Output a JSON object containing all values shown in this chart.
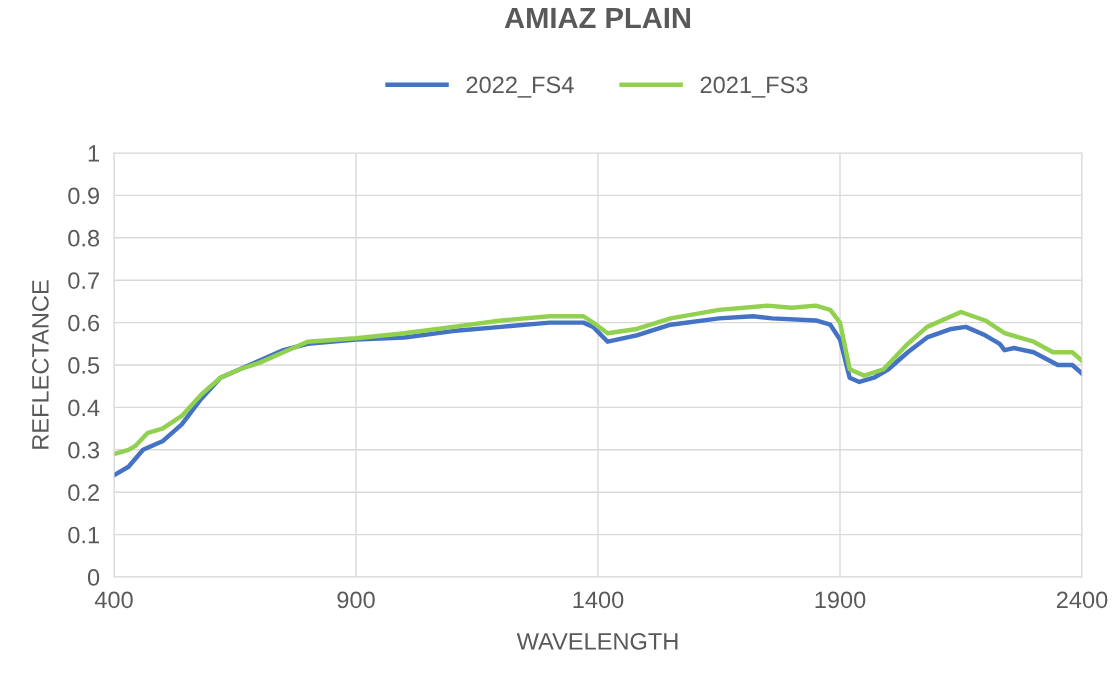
{
  "chart_data": {
    "type": "line",
    "title": "AMIAZ PLAIN",
    "xlabel": "WAVELENGTH",
    "ylabel": "REFLECTANCE",
    "xlim": [
      400,
      2400
    ],
    "xticks": [
      400,
      900,
      1400,
      1900,
      2400
    ],
    "ylim": [
      0,
      1
    ],
    "yticks": [
      0,
      0.1,
      0.2,
      0.3,
      0.4,
      0.5,
      0.6,
      0.7,
      0.8,
      0.9,
      1
    ],
    "grid": true,
    "legend": "top",
    "marker": "none",
    "line_style": "solid",
    "series": [
      {
        "name": "2022_FS4",
        "color": "#4472c4",
        "x": [
          400,
          430,
          460,
          500,
          540,
          580,
          620,
          660,
          700,
          750,
          800,
          900,
          1000,
          1100,
          1200,
          1300,
          1370,
          1390,
          1420,
          1480,
          1550,
          1650,
          1720,
          1760,
          1850,
          1880,
          1900,
          1920,
          1940,
          1970,
          2000,
          2040,
          2080,
          2130,
          2160,
          2200,
          2230,
          2240,
          2260,
          2300,
          2350,
          2380,
          2400
        ],
        "values": [
          0.24,
          0.26,
          0.3,
          0.32,
          0.36,
          0.42,
          0.47,
          0.49,
          0.51,
          0.535,
          0.55,
          0.56,
          0.565,
          0.58,
          0.59,
          0.6,
          0.6,
          0.59,
          0.555,
          0.57,
          0.595,
          0.61,
          0.615,
          0.61,
          0.605,
          0.595,
          0.56,
          0.47,
          0.46,
          0.47,
          0.49,
          0.53,
          0.565,
          0.585,
          0.59,
          0.57,
          0.55,
          0.535,
          0.54,
          0.53,
          0.5,
          0.5,
          0.48
        ]
      },
      {
        "name": "2021_FS3",
        "color": "#92d050",
        "x": [
          400,
          430,
          445,
          470,
          500,
          540,
          580,
          620,
          660,
          700,
          750,
          800,
          900,
          1000,
          1100,
          1200,
          1300,
          1370,
          1390,
          1420,
          1480,
          1550,
          1650,
          1750,
          1800,
          1850,
          1880,
          1900,
          1920,
          1950,
          1990,
          2040,
          2080,
          2150,
          2200,
          2240,
          2300,
          2340,
          2380,
          2400
        ],
        "values": [
          0.29,
          0.3,
          0.31,
          0.34,
          0.35,
          0.38,
          0.43,
          0.47,
          0.49,
          0.505,
          0.53,
          0.555,
          0.563,
          0.575,
          0.59,
          0.605,
          0.615,
          0.615,
          0.6,
          0.575,
          0.585,
          0.61,
          0.63,
          0.64,
          0.635,
          0.64,
          0.63,
          0.6,
          0.49,
          0.475,
          0.49,
          0.55,
          0.59,
          0.625,
          0.605,
          0.575,
          0.555,
          0.53,
          0.53,
          0.51
        ]
      }
    ]
  }
}
